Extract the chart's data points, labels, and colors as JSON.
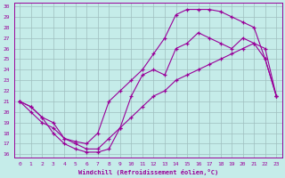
{
  "xlabel": "Windchill (Refroidissement éolien,°C)",
  "xlim": [
    -0.5,
    23.5
  ],
  "ylim": [
    15.7,
    30.3
  ],
  "xticks": [
    0,
    1,
    2,
    3,
    4,
    5,
    6,
    7,
    8,
    9,
    10,
    11,
    12,
    13,
    14,
    15,
    16,
    17,
    18,
    19,
    20,
    21,
    22,
    23
  ],
  "yticks": [
    16,
    17,
    18,
    19,
    20,
    21,
    22,
    23,
    24,
    25,
    26,
    27,
    28,
    29,
    30
  ],
  "bg_color": "#c5ece9",
  "line_color": "#990099",
  "grid_color": "#9fbfbf",
  "line1_x": [
    0,
    1,
    2,
    3,
    4,
    5,
    6,
    7,
    8,
    9,
    10,
    11,
    12,
    13,
    14,
    15,
    16,
    17,
    18,
    19,
    20,
    21,
    22,
    23
  ],
  "line1_y": [
    21.0,
    20.0,
    19.0,
    18.5,
    17.5,
    17.0,
    16.5,
    16.5,
    17.5,
    18.5,
    19.5,
    20.5,
    21.5,
    22.0,
    23.0,
    23.5,
    24.0,
    24.5,
    25.0,
    25.5,
    26.0,
    26.5,
    26.0,
    21.5
  ],
  "line2_x": [
    0,
    1,
    2,
    3,
    4,
    5,
    6,
    7,
    8,
    9,
    10,
    11,
    12,
    13,
    14,
    15,
    16,
    17,
    18,
    19,
    20,
    21,
    22,
    23
  ],
  "line2_y": [
    21.0,
    20.5,
    19.5,
    18.0,
    17.0,
    16.5,
    16.2,
    16.2,
    16.5,
    18.5,
    21.5,
    23.5,
    24.0,
    23.5,
    26.0,
    26.5,
    27.5,
    27.0,
    26.5,
    26.0,
    27.0,
    26.5,
    25.0,
    21.5
  ],
  "line3_x": [
    0,
    1,
    2,
    3,
    4,
    5,
    6,
    7,
    8,
    9,
    10,
    11,
    12,
    13,
    14,
    15,
    16,
    17,
    18,
    19,
    20,
    21,
    22,
    23
  ],
  "line3_y": [
    21.0,
    20.5,
    19.5,
    19.0,
    17.5,
    17.2,
    17.0,
    18.0,
    21.0,
    22.0,
    23.0,
    24.0,
    25.5,
    27.0,
    29.2,
    29.7,
    29.7,
    29.7,
    29.5,
    29.0,
    28.5,
    28.0,
    25.0,
    21.5
  ]
}
